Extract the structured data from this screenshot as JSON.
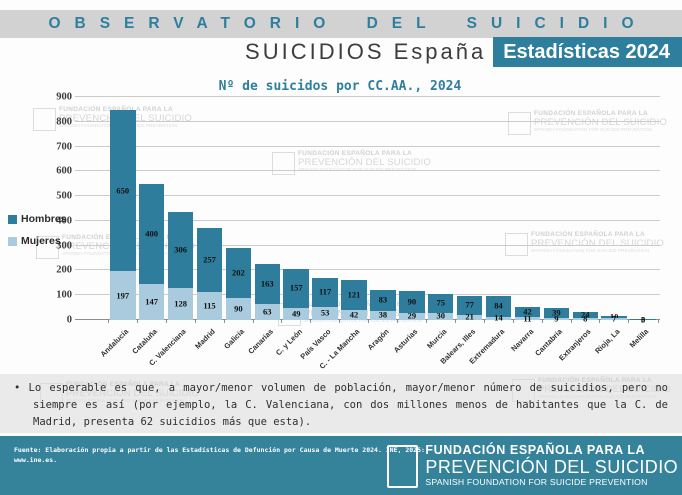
{
  "header": {
    "observatory_title": "OBSERVATORIO DEL SUICIDIO",
    "subtitle": "SUICIDIOS España",
    "badge": "Estadísticas 2024"
  },
  "chart_data": {
    "type": "bar",
    "stacked": true,
    "title": "Nº de suicidos por CC.AA., 2024",
    "categories": [
      "Andalucía",
      "Cataluña",
      "C. Valenciana",
      "Madrid",
      "Galicia",
      "Canarias",
      "C. y León",
      "País Vasco",
      "C. - La Mancha",
      "Aragón",
      "Asturias",
      "Murcia",
      "Balears, Illes",
      "Extremadura",
      "Navarra",
      "Cantabria",
      "Extranjeros",
      "Rioja, La",
      "Melilla"
    ],
    "series": [
      {
        "name": "Hombres",
        "color": "#2E7D9C",
        "values": [
          650,
          400,
          306,
          257,
          202,
          163,
          157,
          117,
          121,
          83,
          90,
          75,
          77,
          84,
          42,
          39,
          24,
          10,
          3
        ]
      },
      {
        "name": "Mujeres",
        "color": "#A9CBDD",
        "values": [
          197,
          147,
          128,
          115,
          90,
          63,
          49,
          53,
          42,
          38,
          29,
          30,
          21,
          14,
          11,
          9,
          8,
          7,
          0
        ]
      }
    ],
    "ylim": [
      0,
      900
    ],
    "ytick_step": 100,
    "grid": true,
    "legend_position": "left"
  },
  "note": {
    "bullet": "•",
    "text": "Lo esperable es que, a mayor/menor volumen de población, mayor/menor número de suicidios, pero no siempre es así (por ejemplo, la C. Valenciana, con dos millones menos de habitantes que la C. de Madrid, presenta 62 suicidios más que esta)."
  },
  "footer": {
    "source_line1": "Fuente: Elaboración propia a partir de las Estadísticas de Defunción por Causa de Muerte 2024. INE, 2025:",
    "source_line2": "www.ine.es.",
    "org_line1": "FUNDACIÓN ESPAÑOLA PARA LA",
    "org_line2": "PREVENCIÓN DEL SUICIDIO",
    "org_line3": "SPANISH FOUNDATION FOR SUICIDE PREVENTION"
  },
  "watermark": {
    "line1": "FUNDACIÓN ESPAÑOLA PARA LA",
    "line2": "PREVENCIÓN DEL SUICIDIO",
    "line3": "SPANISH FOUNDATION FOR SUICIDE PREVENTION"
  },
  "colors": {
    "teal": "#2E7F9E",
    "bar_hombres": "#2E7D9C",
    "bar_mujeres": "#A9CBDD",
    "header_band_gray": "#D2D2D2",
    "note_panel_gray": "#EAEAEA",
    "footer_teal": "#35839B",
    "gridline": "#CBCBCB"
  }
}
